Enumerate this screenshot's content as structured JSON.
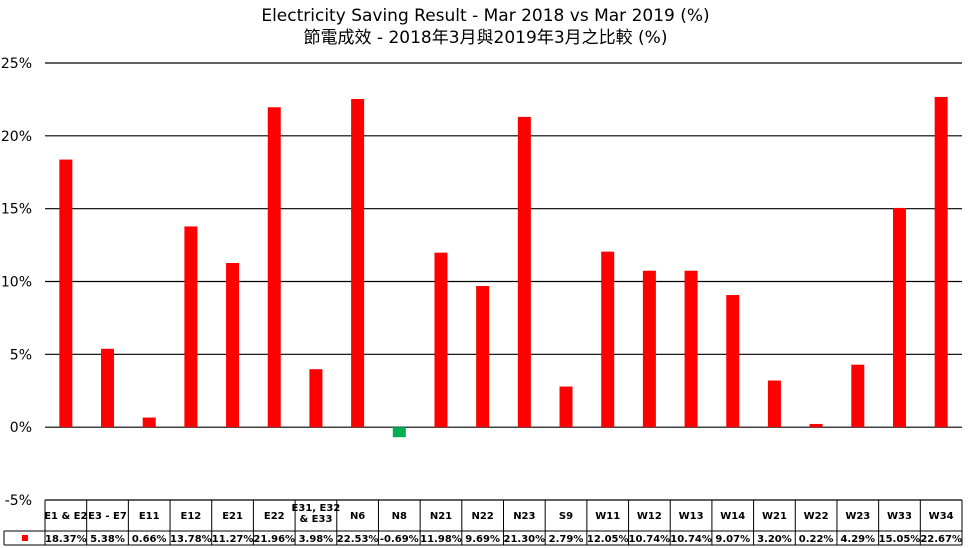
{
  "chart_data": {
    "type": "bar",
    "title": "Electricity Saving Result - Mar 2018 vs Mar 2019 (%)",
    "subtitle": "節電成效 - 2018年3月與2019年3月之比較 (%)",
    "ylim": [
      -5,
      25
    ],
    "yticks": [
      25,
      20,
      15,
      10,
      5,
      0,
      -5
    ],
    "ytick_labels": [
      "25%",
      "20%",
      "15%",
      "10%",
      "5%",
      "0%",
      "-5%"
    ],
    "grid": true,
    "positive_color": "#ff0000",
    "negative_color": "#00b050",
    "categories": [
      "E1 & E2",
      "E3 - E7",
      "E11",
      "E12",
      "E21",
      "E22",
      "E31, E32 & E33",
      "N6",
      "N8",
      "N21",
      "N22",
      "N23",
      "S9",
      "W11",
      "W12",
      "W13",
      "W14",
      "W21",
      "W22",
      "W23",
      "W33",
      "W34"
    ],
    "values": [
      18.37,
      5.38,
      0.66,
      13.78,
      11.27,
      21.96,
      3.98,
      22.53,
      -0.69,
      11.98,
      9.69,
      21.3,
      2.79,
      12.05,
      10.74,
      10.74,
      9.07,
      3.2,
      0.22,
      4.29,
      15.05,
      22.67
    ],
    "value_labels": [
      "18.37%",
      "5.38%",
      "0.66%",
      "13.78%",
      "11.27%",
      "21.96%",
      "3.98%",
      "22.53%",
      "-0.69%",
      "11.98%",
      "9.69%",
      "21.30%",
      "2.79%",
      "12.05%",
      "10.74%",
      "10.74%",
      "9.07%",
      "3.20%",
      "0.22%",
      "4.29%",
      "15.05%",
      "22.67%"
    ]
  }
}
